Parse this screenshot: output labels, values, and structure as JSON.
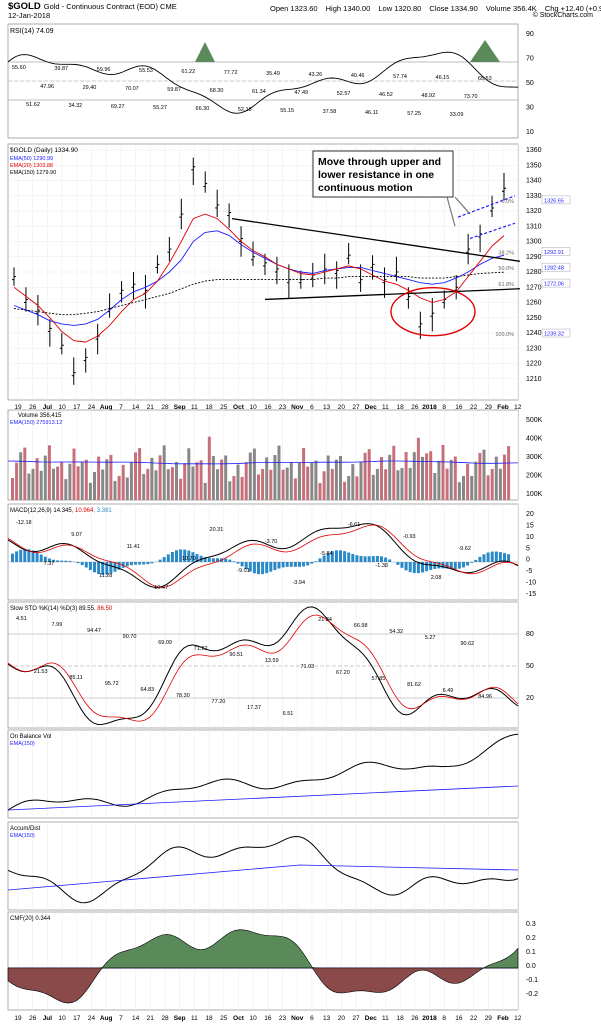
{
  "header": {
    "symbol": "$GOLD",
    "description": "Gold - Continuous Contract (EOD) CME",
    "date": "12-Jan-2018",
    "open": "Open 1323.60",
    "high": "High 1340.00",
    "low": "Low 1320.80",
    "close": "Close 1334.90",
    "volume": "Volume 356.4K",
    "change": "Chg +12.40 (+0.94%)",
    "brand": "© StockCharts.com"
  },
  "colors": {
    "price": "#000000",
    "ema50": "#1a1aff",
    "ema20": "#e00000",
    "ema150": "#000000",
    "volume_up": "#888888",
    "volume_down": "#c8707a",
    "macd_hist": "#2a8ac8",
    "cmf_pos": "#5a8a5a",
    "cmf_neg": "#8a4a4a",
    "annotation_circle": "#e00000"
  },
  "x_axis": {
    "labels": [
      "19",
      "26",
      "Jul",
      "10",
      "17",
      "24",
      "Aug",
      "7",
      "14",
      "21",
      "28",
      "Sep",
      "11",
      "18",
      "25",
      "Oct",
      "10",
      "16",
      "23",
      "Nov",
      "6",
      "13",
      "20",
      "27",
      "Dec",
      "11",
      "18",
      "26",
      "2018",
      "8",
      "16",
      "22",
      "29",
      "Feb",
      "12"
    ]
  },
  "panels": {
    "rsi": {
      "legend": "RSI(14) 74.09",
      "axis": [
        "90",
        "70",
        "50",
        "30",
        "10"
      ],
      "labels": [
        "55.60",
        "51.62",
        "47.96",
        "39.87",
        "34.32",
        "29.40",
        "59.96",
        "69.27",
        "70.07",
        "55.53",
        "55.27",
        "59.87",
        "61.22",
        "66.30",
        "68.30",
        "77.72",
        "52.18",
        "61.34",
        "35.49",
        "55.15",
        "47.49",
        "43.26",
        "37.58",
        "52.57",
        "40.46",
        "46.11",
        "46.52",
        "57.74",
        "57.25",
        "48.92",
        "46.15",
        "33.09",
        "73.70",
        "65.53"
      ]
    },
    "price": {
      "legend_title": "$GOLD (Daily) 1334.90",
      "legend_ema50": "EMA(50) 1290.99",
      "legend_ema20": "EMA(20) 1303.88",
      "legend_ema150": "EMA(150) 1279.90",
      "axis": [
        "1360",
        "1350",
        "1340",
        "1330",
        "1320",
        "1310",
        "1300",
        "1290",
        "1280",
        "1270",
        "1260",
        "1250",
        "1240",
        "1230",
        "1220",
        "1210"
      ],
      "annotation": "Move through upper and lower resistance in one continuous motion",
      "fib": [
        {
          "pct": "0.0%",
          "value": "1326.65"
        },
        {
          "pct": "38.2%",
          "value": "1292.91"
        },
        {
          "pct": "50.0%",
          "value": "1282.48"
        },
        {
          "pct": "61.8%",
          "value": "1272.06"
        },
        {
          "pct": "100.0%",
          "value": "1239.32"
        }
      ]
    },
    "volume": {
      "legend_title": "Volume 356,415",
      "legend_ema": "EMA(150) 275913.12",
      "axis": [
        "500K",
        "400K",
        "300K",
        "200K",
        "100K"
      ]
    },
    "macd": {
      "legend_title": "MACD(12,26,9)",
      "legend_macd": "14.345",
      "legend_signal": "10.964",
      "legend_hist": "3.381",
      "axis": [
        "20",
        "15",
        "10",
        "5",
        "0",
        "-5",
        "-10",
        "-15"
      ],
      "labels": [
        "-12.18",
        "7.37",
        "9.07",
        "11.28",
        "11.41",
        "10.47",
        "10.70",
        "20.31",
        "-9.01",
        "-3.70",
        "-3.94",
        "-5.84",
        "-6.61",
        "-1.38",
        "-0.93",
        "2.08",
        "-9.62"
      ]
    },
    "sto": {
      "legend_title": "Slow STO %K(14) %D(3)",
      "legend_k": "89.55",
      "legend_d": "86.50",
      "axis": [
        "80",
        "50",
        "20"
      ],
      "labels": [
        "4.51",
        "21.53",
        "7.99",
        "85.11",
        "94.47",
        "95.72",
        "90.70",
        "64.83",
        "69.09",
        "78.30",
        "71.22",
        "77.20",
        "90.51",
        "17.37",
        "13.59",
        "6.51",
        "71.03",
        "21.34",
        "67.20",
        "66.98",
        "57.85",
        "54.32",
        "81.62",
        "5.27",
        "6.49",
        "90.62",
        "84.96"
      ]
    },
    "obv": {
      "legend_title": "On Balance Vol",
      "legend_ema": "EMA(150)"
    },
    "ad": {
      "legend_title": "Accum/Dist",
      "legend_ema": "EMA(150)"
    },
    "cmf": {
      "legend_title": "CMF(20) 0.344",
      "axis": [
        "0.3",
        "0.2",
        "0.1",
        "0.0",
        "-0.1",
        "-0.2"
      ]
    }
  },
  "chart_data": {
    "type": "line",
    "title": "$GOLD (Daily) 1334.90",
    "series": [
      {
        "name": "$GOLD",
        "values": [
          1277,
          1262,
          1255,
          1243,
          1232,
          1214,
          1224,
          1238,
          1256,
          1268,
          1272,
          1268,
          1285,
          1295,
          1318,
          1349,
          1338,
          1324,
          1319,
          1302,
          1290,
          1286,
          1282,
          1275,
          1275,
          1278,
          1282,
          1281,
          1291,
          1275,
          1285,
          1275,
          1280,
          1264,
          1246,
          1253,
          1262,
          1270,
          1295,
          1305,
          1322,
          1334.9
        ]
      },
      {
        "name": "EMA(50)",
        "values": [
          1258,
          1255,
          1252,
          1248,
          1246,
          1245,
          1246,
          1249,
          1255,
          1262,
          1267,
          1270,
          1274,
          1280,
          1288,
          1300,
          1306,
          1307,
          1304,
          1298,
          1293,
          1289,
          1285,
          1282,
          1280,
          1279,
          1281,
          1282,
          1283,
          1283,
          1281,
          1279,
          1277,
          1275,
          1273,
          1272,
          1273,
          1276,
          1280,
          1285,
          1289,
          1291
        ]
      },
      {
        "name": "EMA(20)",
        "values": [
          1270,
          1264,
          1258,
          1250,
          1241,
          1235,
          1234,
          1238,
          1245,
          1254,
          1262,
          1266,
          1274,
          1286,
          1300,
          1315,
          1318,
          1315,
          1308,
          1300,
          1294,
          1290,
          1285,
          1282,
          1279,
          1278,
          1280,
          1282,
          1284,
          1282,
          1278,
          1274,
          1272,
          1268,
          1263,
          1260,
          1262,
          1267,
          1277,
          1287,
          1297,
          1303.88
        ]
      },
      {
        "name": "EMA(150)",
        "values": [
          1256,
          1255,
          1254,
          1253,
          1252,
          1252,
          1253,
          1254,
          1256,
          1258,
          1260,
          1262,
          1264,
          1266,
          1269,
          1272,
          1274,
          1275,
          1275,
          1275,
          1275,
          1275,
          1275,
          1275,
          1275,
          1275,
          1276,
          1276,
          1277,
          1277,
          1277,
          1277,
          1277,
          1277,
          1276,
          1276,
          1276,
          1277,
          1278,
          1279,
          1279.5,
          1279.9
        ]
      }
    ],
    "ylim": [
      1200,
      1360
    ]
  }
}
